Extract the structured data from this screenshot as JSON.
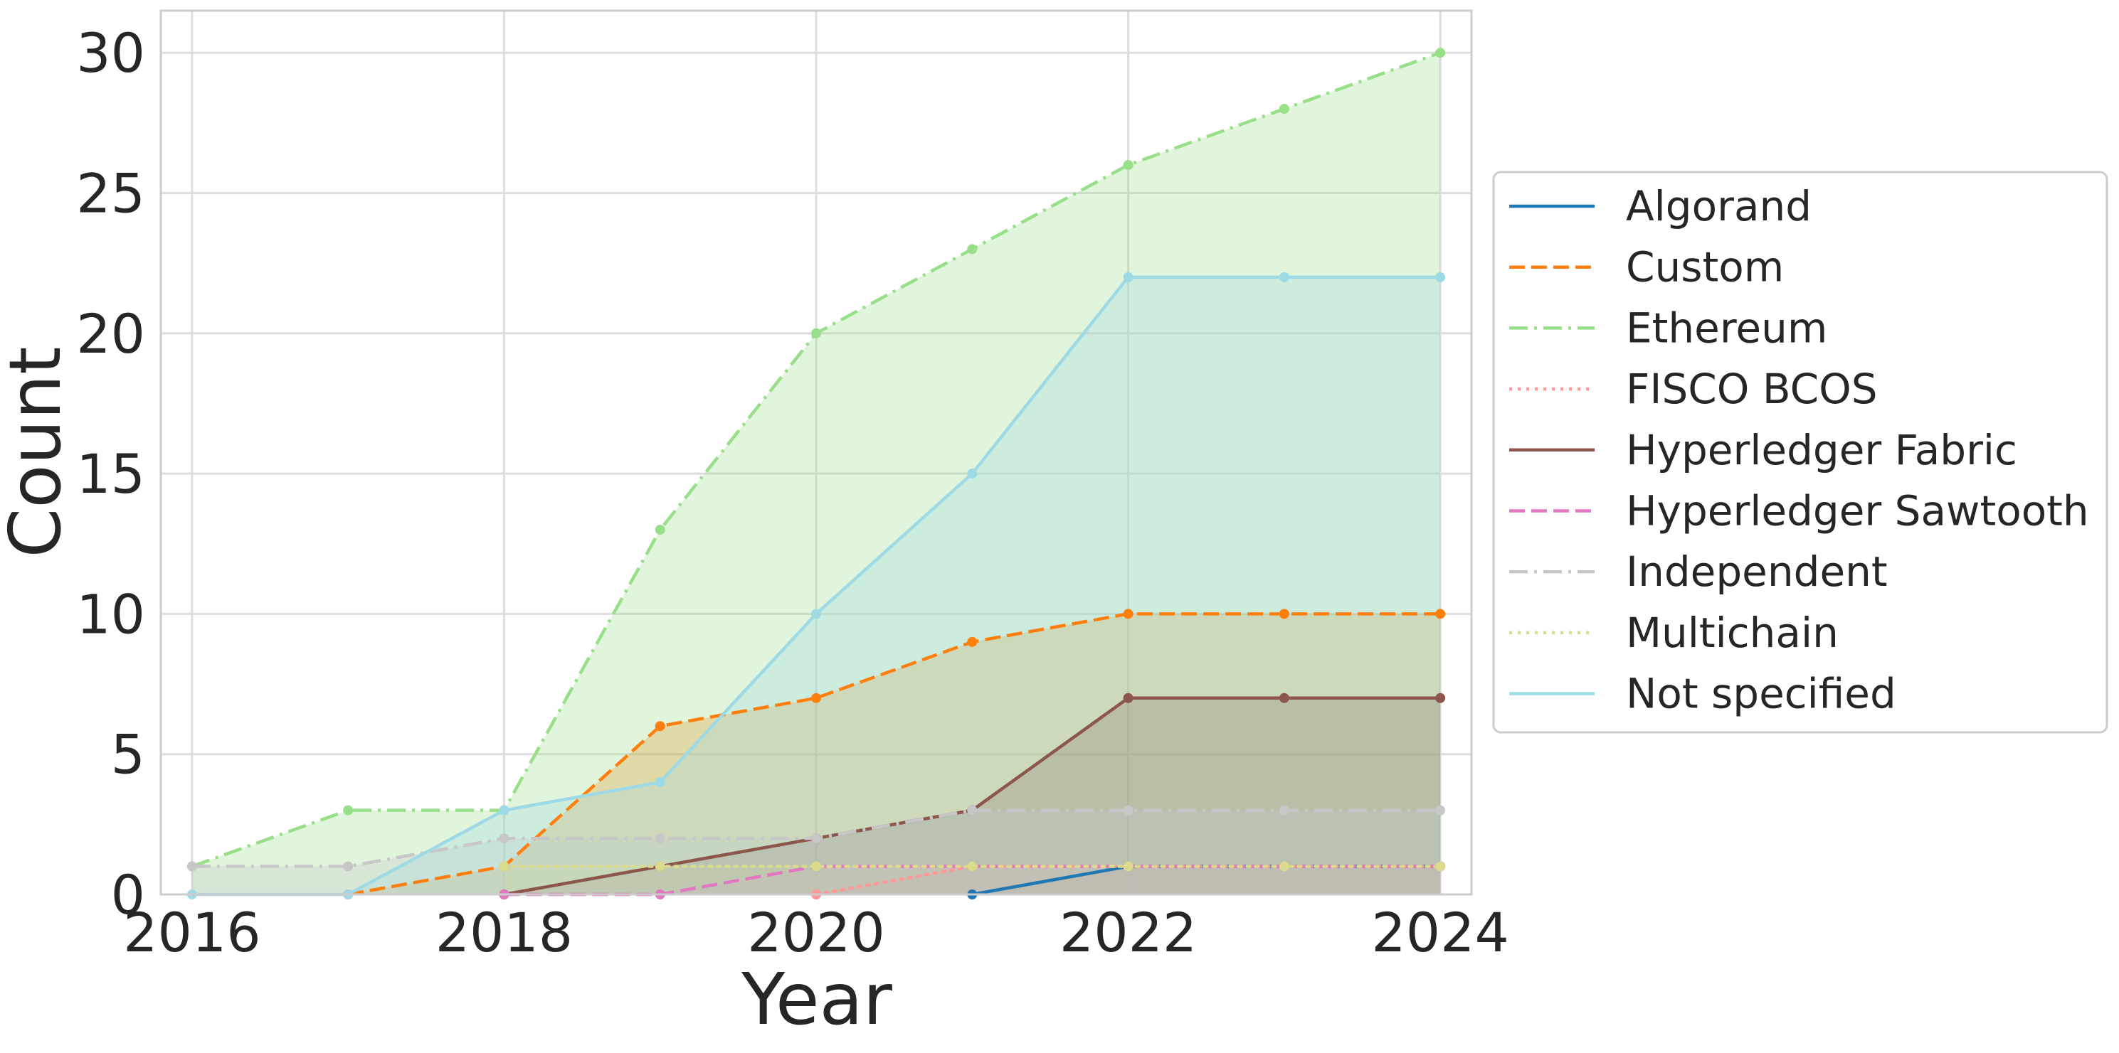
{
  "chart_data": {
    "type": "area",
    "xlabel": "Year",
    "ylabel": "Count",
    "xlim": [
      2015.8,
      2024.2
    ],
    "ylim": [
      0,
      31.5
    ],
    "xticks": [
      2016,
      2018,
      2020,
      2022,
      2024
    ],
    "yticks": [
      0,
      5,
      10,
      15,
      20,
      25,
      30
    ],
    "grid": true,
    "legend_position": "right-outside",
    "x": [
      2016,
      2017,
      2018,
      2019,
      2020,
      2021,
      2022,
      2023,
      2024
    ],
    "series": [
      {
        "name": "Algorand",
        "color": "#1f77b4",
        "dash": "solid",
        "start": 2021,
        "values": [
          0,
          0,
          0,
          0,
          0,
          0,
          1,
          1,
          1
        ]
      },
      {
        "name": "Custom",
        "color": "#ff7f0e",
        "dash": "dashed",
        "start": 2017,
        "values": [
          0,
          0,
          1,
          6,
          7,
          9,
          10,
          10,
          10
        ]
      },
      {
        "name": "Ethereum",
        "color": "#98df8a",
        "dash": "dashdot",
        "start": 2016,
        "values": [
          1,
          3,
          3,
          13,
          20,
          23,
          26,
          28,
          30
        ]
      },
      {
        "name": "FISCO BCOS",
        "color": "#ff9896",
        "dash": "dotted",
        "start": 2020,
        "values": [
          0,
          0,
          0,
          0,
          0,
          1,
          1,
          1,
          1
        ]
      },
      {
        "name": "Hyperledger Fabric",
        "color": "#8c564b",
        "dash": "solid",
        "start": 2018,
        "values": [
          0,
          0,
          0,
          1,
          2,
          3,
          7,
          7,
          7
        ]
      },
      {
        "name": "Hyperledger Sawtooth",
        "color": "#e377c2",
        "dash": "dashed",
        "start": 2018,
        "values": [
          0,
          0,
          0,
          0,
          1,
          1,
          1,
          1,
          1
        ]
      },
      {
        "name": "Independent",
        "color": "#c7c7c7",
        "dash": "dashdot",
        "start": 2016,
        "values": [
          1,
          1,
          2,
          2,
          2,
          3,
          3,
          3,
          3
        ]
      },
      {
        "name": "Multichain",
        "color": "#dbdb8d",
        "dash": "dotted",
        "start": 2018,
        "values": [
          0,
          0,
          1,
          1,
          1,
          1,
          1,
          1,
          1
        ]
      },
      {
        "name": "Not specified",
        "color": "#9edae5",
        "dash": "solid",
        "start": 2016,
        "values": [
          0,
          0,
          3,
          4,
          10,
          15,
          22,
          22,
          22
        ]
      }
    ]
  }
}
